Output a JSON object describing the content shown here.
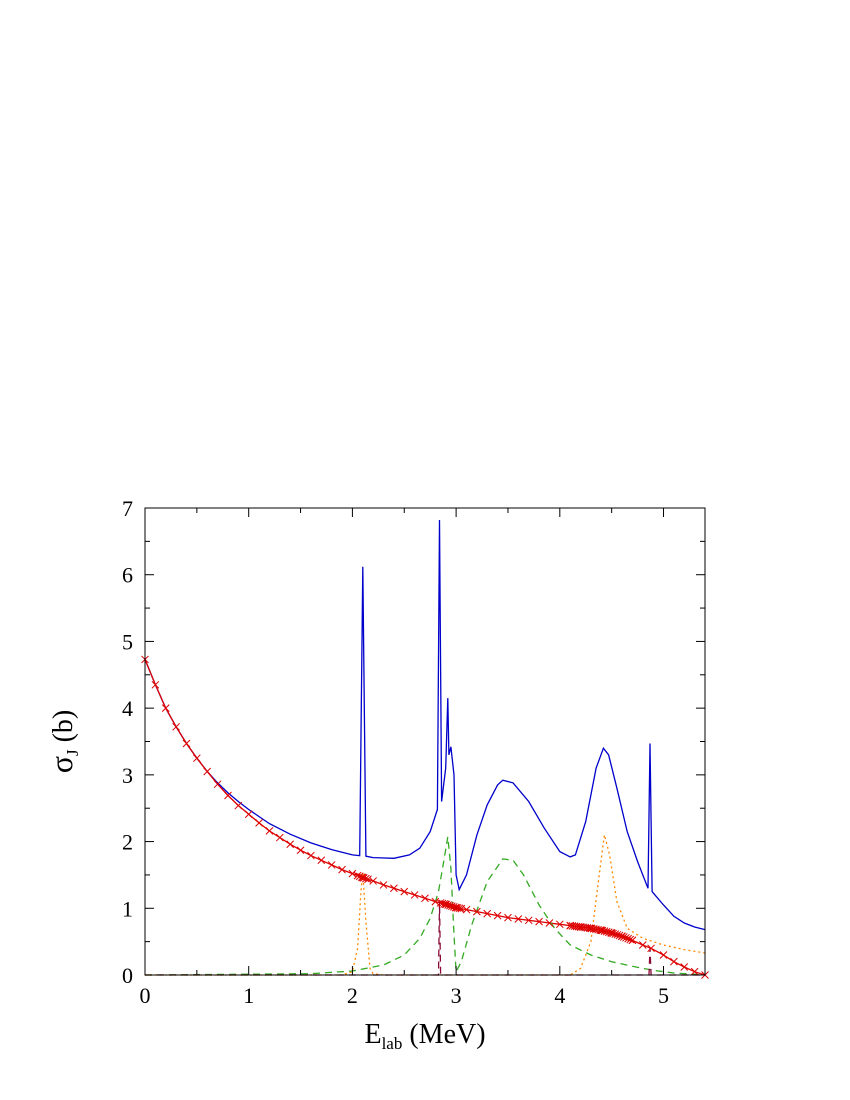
{
  "chart_data": {
    "type": "line",
    "xlabel": {
      "main": "E",
      "sub": "lab",
      "rest": " (MeV)"
    },
    "ylabel": {
      "main": "σ",
      "sub": "J",
      "rest": " (b)"
    },
    "xlim": [
      0,
      5.4
    ],
    "ylim": [
      0,
      7
    ],
    "x_ticks": [
      0,
      1,
      2,
      3,
      4,
      5
    ],
    "y_ticks": [
      0,
      1,
      2,
      3,
      4,
      5,
      6,
      7
    ],
    "grid": false,
    "legend": "none",
    "series": [
      {
        "color": "#0000cc",
        "style": "solid",
        "points": [
          [
            0,
            4.73
          ],
          [
            0.1,
            4.35
          ],
          [
            0.2,
            4.0
          ],
          [
            0.3,
            3.72
          ],
          [
            0.4,
            3.47
          ],
          [
            0.5,
            3.25
          ],
          [
            0.6,
            3.05
          ],
          [
            0.7,
            2.88
          ],
          [
            0.8,
            2.73
          ],
          [
            0.9,
            2.6
          ],
          [
            1.0,
            2.48
          ],
          [
            1.2,
            2.27
          ],
          [
            1.4,
            2.11
          ],
          [
            1.6,
            1.98
          ],
          [
            1.8,
            1.88
          ],
          [
            2.0,
            1.8
          ],
          [
            2.07,
            1.79
          ],
          [
            2.1,
            6.12
          ],
          [
            2.13,
            1.78
          ],
          [
            2.2,
            1.76
          ],
          [
            2.4,
            1.75
          ],
          [
            2.55,
            1.8
          ],
          [
            2.65,
            1.9
          ],
          [
            2.75,
            2.15
          ],
          [
            2.82,
            2.48
          ],
          [
            2.84,
            6.82
          ],
          [
            2.86,
            2.6
          ],
          [
            2.9,
            3.1
          ],
          [
            2.92,
            4.15
          ],
          [
            2.93,
            3.3
          ],
          [
            2.95,
            3.42
          ],
          [
            2.98,
            3.0
          ],
          [
            3.0,
            1.5
          ],
          [
            3.03,
            1.28
          ],
          [
            3.1,
            1.5
          ],
          [
            3.2,
            2.1
          ],
          [
            3.3,
            2.55
          ],
          [
            3.4,
            2.85
          ],
          [
            3.45,
            2.92
          ],
          [
            3.55,
            2.88
          ],
          [
            3.7,
            2.6
          ],
          [
            3.85,
            2.2
          ],
          [
            4.0,
            1.85
          ],
          [
            4.1,
            1.77
          ],
          [
            4.15,
            1.8
          ],
          [
            4.25,
            2.3
          ],
          [
            4.35,
            3.1
          ],
          [
            4.42,
            3.4
          ],
          [
            4.47,
            3.3
          ],
          [
            4.55,
            2.8
          ],
          [
            4.65,
            2.15
          ],
          [
            4.75,
            1.7
          ],
          [
            4.85,
            1.3
          ],
          [
            4.87,
            3.47
          ],
          [
            4.89,
            1.25
          ],
          [
            5.0,
            1.05
          ],
          [
            5.1,
            0.88
          ],
          [
            5.2,
            0.78
          ],
          [
            5.3,
            0.72
          ],
          [
            5.4,
            0.68
          ]
        ]
      },
      {
        "color": "#dd0000",
        "style": "solid",
        "marker": "x",
        "points": [
          [
            0,
            4.73
          ],
          [
            0.1,
            4.35
          ],
          [
            0.2,
            4.0
          ],
          [
            0.3,
            3.72
          ],
          [
            0.4,
            3.47
          ],
          [
            0.5,
            3.25
          ],
          [
            0.6,
            3.05
          ],
          [
            0.7,
            2.86
          ],
          [
            0.8,
            2.69
          ],
          [
            0.9,
            2.54
          ],
          [
            1.0,
            2.41
          ],
          [
            1.1,
            2.28
          ],
          [
            1.2,
            2.16
          ],
          [
            1.3,
            2.06
          ],
          [
            1.4,
            1.96
          ],
          [
            1.5,
            1.87
          ],
          [
            1.6,
            1.79
          ],
          [
            1.7,
            1.72
          ],
          [
            1.8,
            1.65
          ],
          [
            1.9,
            1.58
          ],
          [
            2.0,
            1.52
          ],
          [
            2.1,
            1.46
          ],
          [
            2.2,
            1.41
          ],
          [
            2.3,
            1.35
          ],
          [
            2.4,
            1.3
          ],
          [
            2.5,
            1.25
          ],
          [
            2.6,
            1.2
          ],
          [
            2.7,
            1.15
          ],
          [
            2.8,
            1.1
          ],
          [
            2.9,
            1.06
          ],
          [
            3.0,
            1.01
          ],
          [
            3.1,
            0.98
          ],
          [
            3.2,
            0.95
          ],
          [
            3.3,
            0.92
          ],
          [
            3.4,
            0.89
          ],
          [
            3.5,
            0.86
          ],
          [
            3.6,
            0.84
          ],
          [
            3.7,
            0.82
          ],
          [
            3.8,
            0.8
          ],
          [
            3.9,
            0.78
          ],
          [
            4.0,
            0.76
          ],
          [
            4.1,
            0.74
          ],
          [
            4.2,
            0.72
          ],
          [
            4.3,
            0.7
          ],
          [
            4.4,
            0.67
          ],
          [
            4.5,
            0.63
          ],
          [
            4.6,
            0.58
          ],
          [
            4.7,
            0.52
          ],
          [
            4.8,
            0.45
          ],
          [
            4.88,
            0.4
          ],
          [
            5.0,
            0.3
          ],
          [
            5.1,
            0.2
          ],
          [
            5.2,
            0.12
          ],
          [
            5.3,
            0.05
          ],
          [
            5.4,
            0.0
          ]
        ]
      },
      {
        "color": "#33aa22",
        "style": "dashed",
        "points": [
          [
            0,
            0.0
          ],
          [
            1.6,
            0.02
          ],
          [
            2.0,
            0.06
          ],
          [
            2.3,
            0.15
          ],
          [
            2.5,
            0.3
          ],
          [
            2.65,
            0.55
          ],
          [
            2.75,
            0.85
          ],
          [
            2.83,
            1.25
          ],
          [
            2.88,
            1.7
          ],
          [
            2.92,
            2.07
          ],
          [
            2.95,
            1.6
          ],
          [
            2.98,
            0.6
          ],
          [
            3.0,
            0.05
          ],
          [
            3.05,
            0.2
          ],
          [
            3.15,
            0.75
          ],
          [
            3.3,
            1.4
          ],
          [
            3.45,
            1.74
          ],
          [
            3.55,
            1.72
          ],
          [
            3.65,
            1.5
          ],
          [
            3.8,
            1.05
          ],
          [
            3.95,
            0.7
          ],
          [
            4.1,
            0.45
          ],
          [
            4.3,
            0.3
          ],
          [
            4.5,
            0.2
          ],
          [
            4.7,
            0.13
          ],
          [
            4.9,
            0.07
          ],
          [
            5.1,
            0.03
          ],
          [
            5.3,
            0.01
          ],
          [
            5.4,
            0.0
          ]
        ]
      },
      {
        "color": "#ff8800",
        "style": "dotted",
        "points": [
          [
            0,
            0.0
          ],
          [
            1.9,
            0.0
          ],
          [
            2.0,
            0.05
          ],
          [
            2.05,
            0.4
          ],
          [
            2.08,
            1.2
          ],
          [
            2.1,
            1.55
          ],
          [
            2.13,
            0.8
          ],
          [
            2.17,
            0.1
          ],
          [
            2.2,
            0.02
          ],
          [
            2.3,
            0.0
          ],
          [
            4.1,
            0.0
          ],
          [
            4.2,
            0.1
          ],
          [
            4.3,
            0.5
          ],
          [
            4.38,
            1.5
          ],
          [
            4.43,
            2.1
          ],
          [
            4.48,
            1.8
          ],
          [
            4.55,
            1.1
          ],
          [
            4.65,
            0.7
          ],
          [
            4.8,
            0.55
          ],
          [
            5.0,
            0.45
          ],
          [
            5.2,
            0.38
          ],
          [
            5.4,
            0.33
          ]
        ]
      },
      {
        "color": "#8b0a3a",
        "style": "dashed",
        "points": [
          [
            0,
            0.0
          ],
          [
            2.83,
            0.0
          ],
          [
            2.84,
            1.1
          ],
          [
            2.85,
            0.0
          ],
          [
            4.86,
            0.0
          ],
          [
            4.87,
            0.4
          ],
          [
            4.88,
            0.0
          ],
          [
            5.4,
            0.0
          ]
        ]
      }
    ],
    "marker_clusters": [
      {
        "color": "#dd0000",
        "x_range": [
          2.05,
          2.15
        ],
        "count": 6
      },
      {
        "color": "#dd0000",
        "x_range": [
          2.85,
          3.05
        ],
        "count": 12
      },
      {
        "color": "#dd0000",
        "x_range": [
          4.1,
          4.7
        ],
        "count": 30
      }
    ]
  }
}
